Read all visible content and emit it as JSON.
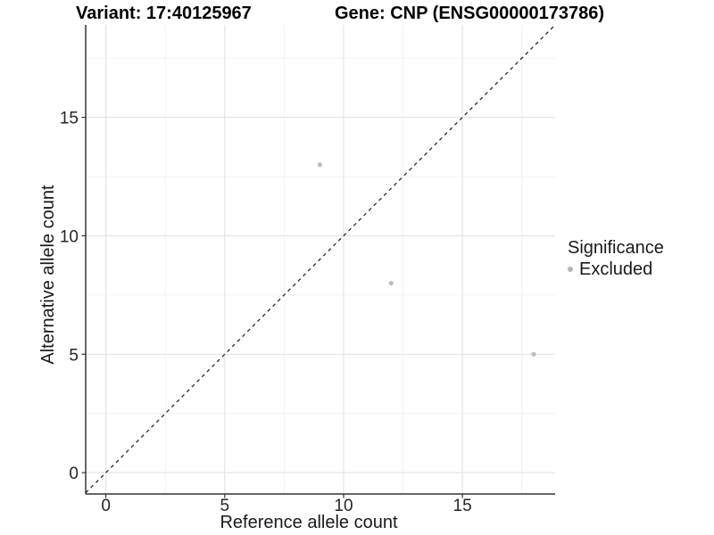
{
  "chart_data": {
    "type": "scatter",
    "title_left": "Variant: 17:40125967",
    "title_right": "Gene: CNP (ENSG00000173786)",
    "xlabel": "Reference allele count",
    "ylabel": "Alternative allele count",
    "x_ticks": [
      0,
      5,
      10,
      15
    ],
    "y_ticks": [
      0,
      5,
      10,
      15
    ],
    "x_minor_ticks": [
      2.5,
      7.5,
      12.5,
      17.5
    ],
    "y_minor_ticks": [
      2.5,
      7.5,
      12.5,
      17.5
    ],
    "xlim": [
      -0.85,
      18.9
    ],
    "ylim": [
      -0.9,
      18.9
    ],
    "grid": true,
    "legend_position": "right",
    "identity_line": {
      "style": "dashed",
      "slope": 1,
      "intercept": 0,
      "color": "#1a1a1a"
    },
    "series": [
      {
        "name": "Excluded",
        "color": "#bdbdbd",
        "points": [
          {
            "x": 9,
            "y": 13
          },
          {
            "x": 12,
            "y": 8
          },
          {
            "x": 18,
            "y": 5
          }
        ]
      }
    ],
    "legend": {
      "title": "Significance",
      "items": [
        {
          "label": "Excluded",
          "color": "#b4b4b4"
        }
      ]
    },
    "style": {
      "grid_major_color": "#e2e2e2",
      "grid_minor_color": "#efefef",
      "axis_line_color": "#333333",
      "tick_text_color": "#262626",
      "background": "#ffffff"
    }
  }
}
